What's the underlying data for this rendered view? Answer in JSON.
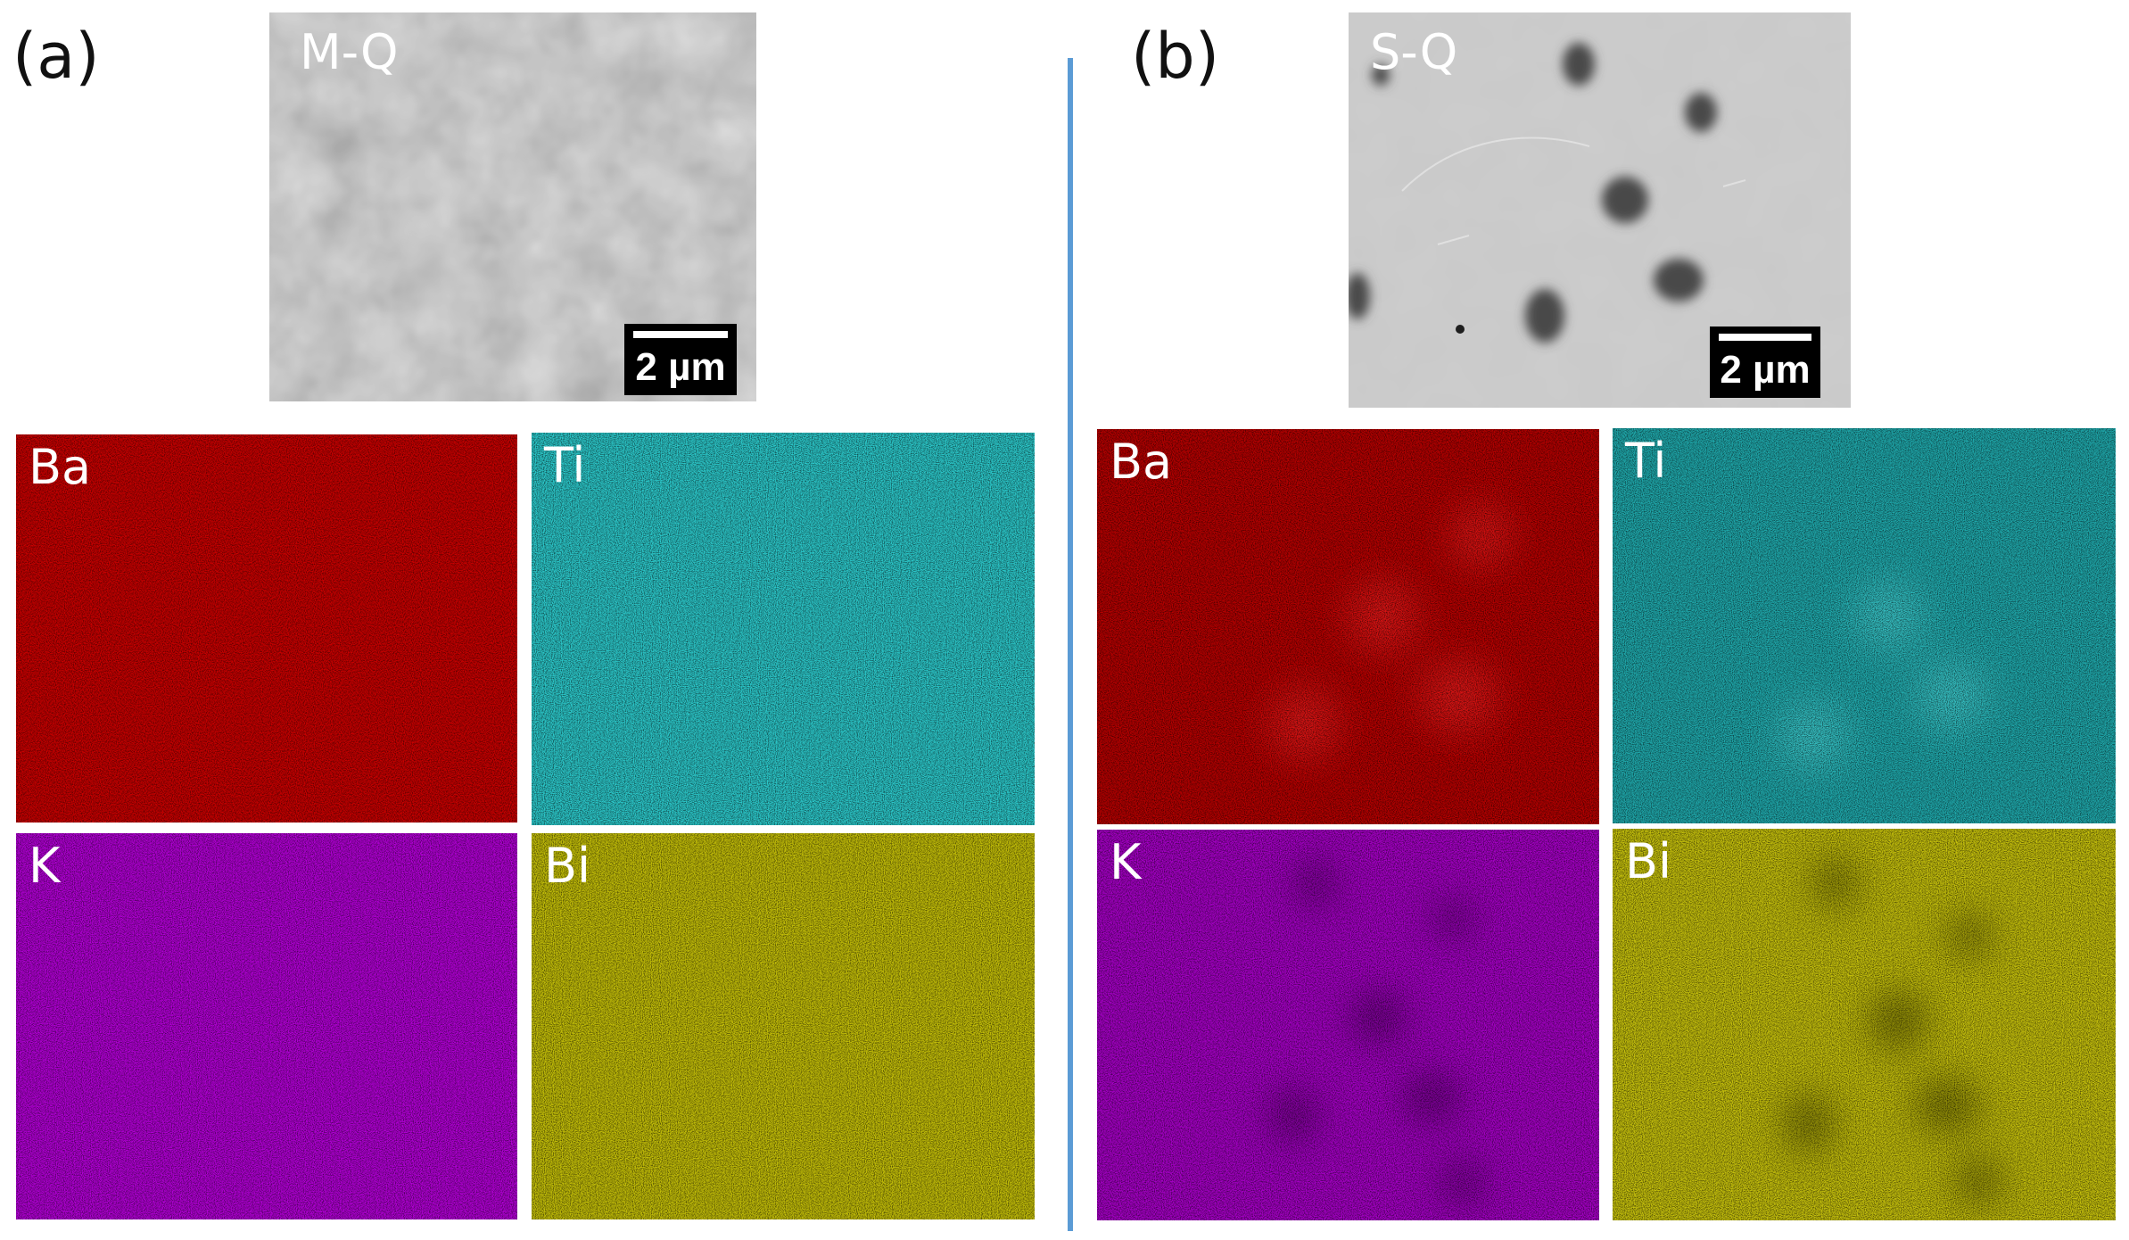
{
  "panel_a": {
    "label": "(a)",
    "sem": {
      "title": "M-Q",
      "scale_bar": "2 µm"
    },
    "maps": [
      {
        "element": "Ba",
        "color": "#c80000"
      },
      {
        "element": "Ti",
        "color": "#2bc6c8"
      },
      {
        "element": "K",
        "color": "#b100d4"
      },
      {
        "element": "Bi",
        "color": "#c2bd08"
      }
    ]
  },
  "panel_b": {
    "label": "(b)",
    "sem": {
      "title": "S-Q",
      "scale_bar": "2 µm"
    },
    "maps": [
      {
        "element": "Ba",
        "color": "#c80000"
      },
      {
        "element": "Ti",
        "color": "#1fa8ab"
      },
      {
        "element": "K",
        "color": "#a400c4"
      },
      {
        "element": "Bi",
        "color": "#c4bf0c"
      }
    ]
  },
  "divider_color": "#5b9bd5"
}
